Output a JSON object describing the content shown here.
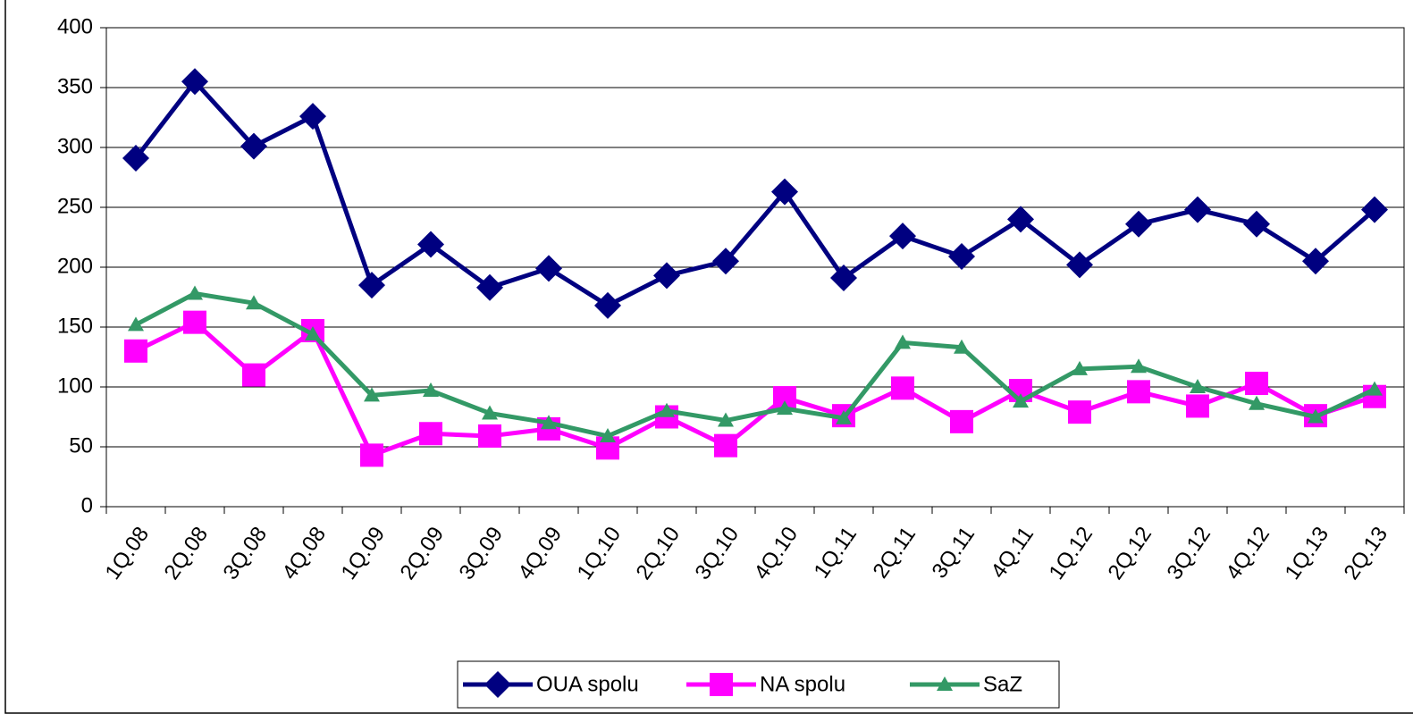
{
  "chart_data": {
    "type": "line",
    "categories": [
      "1Q.08",
      "2Q.08",
      "3Q.08",
      "4Q.08",
      "1Q.09",
      "2Q.09",
      "3Q.09",
      "4Q.09",
      "1Q.10",
      "2Q.10",
      "3Q.10",
      "4Q.10",
      "1Q.11",
      "2Q.11",
      "3Q.11",
      "4Q.11",
      "1Q.12",
      "2Q.12",
      "3Q.12",
      "4Q.12",
      "1Q.13",
      "2Q.13"
    ],
    "series": [
      {
        "name": "OUA spolu",
        "color": "#000080",
        "marker": "diamond",
        "values": [
          291,
          355,
          301,
          326,
          185,
          219,
          183,
          199,
          168,
          193,
          205,
          263,
          191,
          226,
          209,
          240,
          202,
          236,
          248,
          236,
          205,
          248
        ]
      },
      {
        "name": "NA spolu",
        "color": "#ff00ff",
        "marker": "square",
        "values": [
          130,
          154,
          110,
          147,
          43,
          61,
          59,
          65,
          49,
          75,
          51,
          91,
          76,
          99,
          71,
          97,
          79,
          96,
          84,
          103,
          76,
          92
        ]
      },
      {
        "name": "SaZ",
        "color": "#339966",
        "marker": "triangle",
        "values": [
          152,
          178,
          170,
          144,
          93,
          97,
          78,
          70,
          59,
          80,
          72,
          82,
          74,
          137,
          133,
          88,
          115,
          117,
          100,
          86,
          75,
          98
        ]
      }
    ],
    "ylim": [
      0,
      400
    ],
    "yticks": [
      0,
      50,
      100,
      150,
      200,
      250,
      300,
      350,
      400
    ],
    "grid": true,
    "legend": "bottom"
  }
}
